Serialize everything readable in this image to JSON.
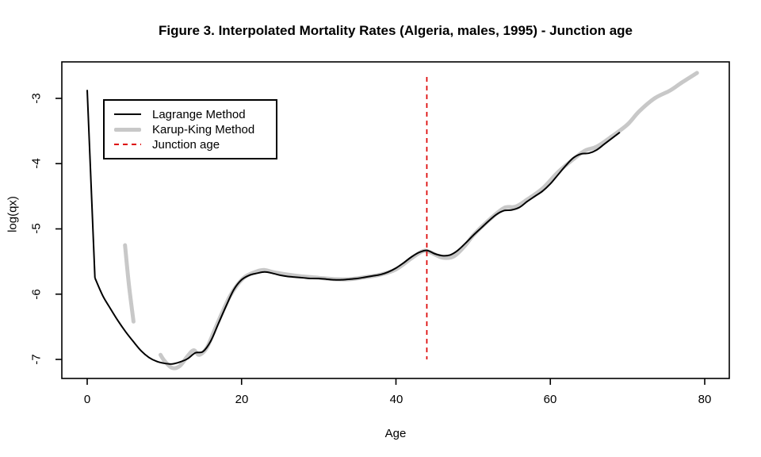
{
  "chart_data": {
    "type": "line",
    "title": "Figure 3. Interpolated Mortality Rates (Algeria, males, 1995) - Junction age",
    "xlabel": "Age",
    "ylabel": "log(qx)",
    "xlim": [
      0,
      80
    ],
    "ylim": [
      -7.2,
      -2.6
    ],
    "grid": false,
    "legend_position": "top-left",
    "x_ticks": [
      0,
      20,
      40,
      60,
      80
    ],
    "y_ticks": [
      -3,
      -4,
      -5,
      -6,
      -7
    ],
    "x_tick_labels": [
      "0",
      "20",
      "40",
      "60",
      "80"
    ],
    "y_tick_labels": [
      "-3",
      "-4",
      "-5",
      "-6",
      "-7"
    ],
    "junction_age": 44,
    "colors": {
      "lagrange": "#000000",
      "karup_king": "#c8c8c8",
      "junction": "#dd0000"
    },
    "legend": [
      {
        "label": "Lagrange Method",
        "color": "#000000",
        "style": "solid-thin"
      },
      {
        "label": "Karup-King Method",
        "color": "#c8c8c8",
        "style": "solid-thick"
      },
      {
        "label": "Junction age",
        "color": "#dd0000",
        "style": "dashed"
      }
    ],
    "series": [
      {
        "name": "Lagrange Method",
        "type": "line",
        "color": "#000000",
        "width": 2,
        "points": [
          [
            0,
            -2.87
          ],
          [
            1,
            -5.75
          ],
          [
            2,
            -6.02
          ],
          [
            3,
            -6.22
          ],
          [
            4,
            -6.41
          ],
          [
            5,
            -6.58
          ],
          [
            6,
            -6.73
          ],
          [
            7,
            -6.87
          ],
          [
            8,
            -6.97
          ],
          [
            9,
            -7.03
          ],
          [
            10,
            -7.06
          ],
          [
            11,
            -7.07
          ],
          [
            12,
            -7.04
          ],
          [
            13,
            -6.99
          ],
          [
            14,
            -6.9
          ],
          [
            15,
            -6.88
          ],
          [
            16,
            -6.72
          ],
          [
            17,
            -6.45
          ],
          [
            18,
            -6.18
          ],
          [
            19,
            -5.93
          ],
          [
            20,
            -5.78
          ],
          [
            21,
            -5.71
          ],
          [
            22,
            -5.68
          ],
          [
            23,
            -5.66
          ],
          [
            24,
            -5.68
          ],
          [
            25,
            -5.71
          ],
          [
            26,
            -5.73
          ],
          [
            27,
            -5.74
          ],
          [
            28,
            -5.75
          ],
          [
            29,
            -5.76
          ],
          [
            30,
            -5.76
          ],
          [
            31,
            -5.77
          ],
          [
            32,
            -5.78
          ],
          [
            33,
            -5.78
          ],
          [
            34,
            -5.77
          ],
          [
            35,
            -5.76
          ],
          [
            36,
            -5.74
          ],
          [
            37,
            -5.72
          ],
          [
            38,
            -5.7
          ],
          [
            39,
            -5.66
          ],
          [
            40,
            -5.6
          ],
          [
            41,
            -5.52
          ],
          [
            42,
            -5.43
          ],
          [
            43,
            -5.36
          ],
          [
            44,
            -5.33
          ],
          [
            45,
            -5.38
          ],
          [
            46,
            -5.41
          ],
          [
            47,
            -5.4
          ],
          [
            48,
            -5.33
          ],
          [
            49,
            -5.22
          ],
          [
            50,
            -5.1
          ],
          [
            51,
            -4.99
          ],
          [
            52,
            -4.88
          ],
          [
            53,
            -4.78
          ],
          [
            54,
            -4.72
          ],
          [
            55,
            -4.71
          ],
          [
            56,
            -4.67
          ],
          [
            57,
            -4.58
          ],
          [
            58,
            -4.5
          ],
          [
            59,
            -4.42
          ],
          [
            60,
            -4.31
          ],
          [
            61,
            -4.17
          ],
          [
            62,
            -4.03
          ],
          [
            63,
            -3.91
          ],
          [
            64,
            -3.85
          ],
          [
            65,
            -3.84
          ],
          [
            66,
            -3.79
          ],
          [
            67,
            -3.7
          ],
          [
            68,
            -3.61
          ],
          [
            69,
            -3.52
          ]
        ]
      },
      {
        "name": "Karup-King Method",
        "type": "line",
        "color": "#c8c8c8",
        "width": 5,
        "segments": [
          [
            [
              4.9,
              -5.25
            ],
            [
              5.4,
              -5.85
            ],
            [
              6.0,
              -6.42
            ]
          ],
          [
            [
              9.5,
              -6.93
            ],
            [
              10,
              -7.02
            ],
            [
              11,
              -7.13
            ],
            [
              12,
              -7.1
            ],
            [
              13,
              -6.95
            ],
            [
              13.8,
              -6.86
            ],
            [
              14.5,
              -6.93
            ],
            [
              15.5,
              -6.82
            ],
            [
              16.5,
              -6.55
            ],
            [
              17.5,
              -6.28
            ],
            [
              18.5,
              -6.03
            ],
            [
              19.5,
              -5.85
            ],
            [
              20.5,
              -5.73
            ],
            [
              22,
              -5.65
            ],
            [
              23,
              -5.63
            ],
            [
              24,
              -5.66
            ],
            [
              26,
              -5.7
            ],
            [
              28,
              -5.73
            ],
            [
              30,
              -5.75
            ],
            [
              32,
              -5.77
            ],
            [
              34,
              -5.77
            ],
            [
              36,
              -5.74
            ],
            [
              38,
              -5.7
            ],
            [
              40,
              -5.62
            ],
            [
              42,
              -5.45
            ],
            [
              43.5,
              -5.34
            ],
            [
              44.5,
              -5.36
            ],
            [
              46,
              -5.44
            ],
            [
              47.5,
              -5.42
            ],
            [
              49,
              -5.25
            ],
            [
              50,
              -5.1
            ],
            [
              52,
              -4.87
            ],
            [
              54,
              -4.68
            ],
            [
              55.5,
              -4.66
            ],
            [
              57,
              -4.55
            ],
            [
              59,
              -4.38
            ],
            [
              61,
              -4.13
            ],
            [
              63,
              -3.93
            ],
            [
              64.5,
              -3.8
            ],
            [
              66,
              -3.74
            ],
            [
              68,
              -3.58
            ],
            [
              70,
              -3.4
            ],
            [
              71.5,
              -3.2
            ],
            [
              73.5,
              -3.0
            ],
            [
              75.5,
              -2.88
            ],
            [
              77,
              -2.76
            ],
            [
              79,
              -2.61
            ]
          ]
        ]
      },
      {
        "name": "Junction age",
        "type": "vline",
        "color": "#dd0000",
        "dashed": true,
        "x": 44
      }
    ]
  }
}
